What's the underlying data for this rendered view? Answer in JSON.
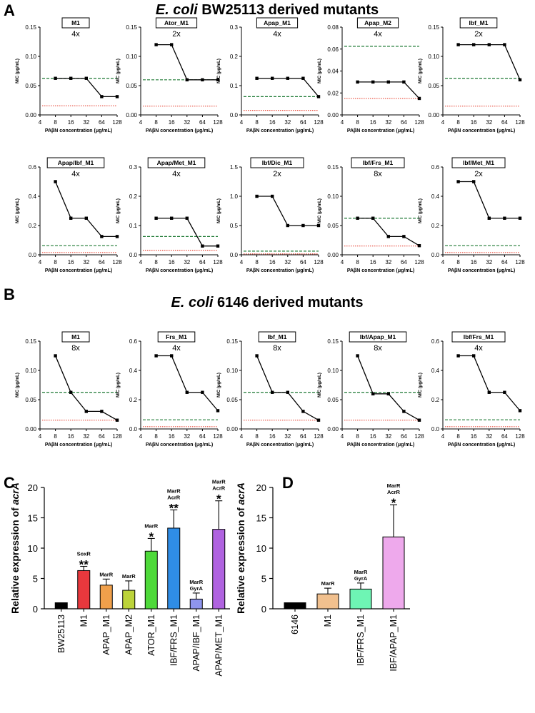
{
  "panel_labels": [
    "A",
    "B",
    "C",
    "D"
  ],
  "section_titles": {
    "A": {
      "italic": "E. coli",
      "rest": " BW25113 derived mutants"
    },
    "B": {
      "italic": "E. coli",
      "rest": " 6146 derived mutants"
    }
  },
  "colors": {
    "line": "#000000",
    "green_dashed": "#1e7a35",
    "red_dotted": "#e74c3c"
  },
  "chart_data": [
    {
      "type": "line",
      "panel": "A",
      "title": "M1",
      "fold": "4x",
      "xlabel": "PAβN concentration (μg/mL)",
      "ylabel": "MIC (μg/mL)",
      "x": [
        8,
        16,
        32,
        64,
        128
      ],
      "y": [
        0.0625,
        0.0625,
        0.0625,
        0.03125,
        0.03125
      ],
      "ylim": [
        0,
        0.15
      ],
      "yticks": [
        "0.00",
        "0.05",
        "0.10",
        "0.15"
      ],
      "green": 0.0625,
      "red": 0.0156
    },
    {
      "type": "line",
      "panel": "A",
      "title": "Ator_M1",
      "fold": "2x",
      "xlabel": "PAβN concentration (μg/mL)",
      "ylabel": "MIC (μg/mL)",
      "x": [
        8,
        16,
        32,
        64,
        128
      ],
      "y": [
        0.12,
        0.12,
        0.06,
        0.06,
        0.06
      ],
      "ylim": [
        0,
        0.15
      ],
      "yticks": [
        "0.00",
        "0.05",
        "0.10",
        "0.15"
      ],
      "green": 0.06,
      "red": 0.015
    },
    {
      "type": "line",
      "panel": "A",
      "title": "Apap_M1",
      "fold": "4x",
      "xlabel": "PAβN concentration (μg/mL)",
      "ylabel": "MIC (μg/mL)",
      "x": [
        8,
        16,
        32,
        64,
        128
      ],
      "y": [
        0.125,
        0.125,
        0.125,
        0.125,
        0.0625
      ],
      "ylim": [
        0,
        0.3
      ],
      "yticks": [
        "0.0",
        "0.1",
        "0.2",
        "0.3"
      ],
      "green": 0.0625,
      "red": 0.0156
    },
    {
      "type": "line",
      "panel": "A",
      "title": "Apap_M2",
      "fold": "4x",
      "xlabel": "PAβN concentration (μg/mL)",
      "ylabel": "MIC (μg/mL)",
      "x": [
        8,
        16,
        32,
        64,
        128
      ],
      "y": [
        0.03,
        0.03,
        0.03,
        0.03,
        0.015
      ],
      "ylim": [
        0,
        0.08
      ],
      "yticks": [
        "0.00",
        "0.02",
        "0.04",
        "0.06",
        "0.08"
      ],
      "green": 0.0625,
      "red": 0.015
    },
    {
      "type": "line",
      "panel": "A",
      "title": "Ibf_M1",
      "fold": "2x",
      "xlabel": "PAβN concentration (μg/mL)",
      "ylabel": "MIC (μg/mL)",
      "x": [
        8,
        16,
        32,
        64,
        128
      ],
      "y": [
        0.12,
        0.12,
        0.12,
        0.12,
        0.06
      ],
      "ylim": [
        0,
        0.15
      ],
      "yticks": [
        "0.00",
        "0.05",
        "0.10",
        "0.15"
      ],
      "green": 0.0625,
      "red": 0.015
    },
    {
      "type": "line",
      "panel": "A",
      "title": "Apap/Ibf_M1",
      "fold": "4x",
      "xlabel": "PAβN concentration (μg/mL)",
      "ylabel": "MIC (μg/mL)",
      "x": [
        8,
        16,
        32,
        64,
        128
      ],
      "y": [
        0.5,
        0.25,
        0.25,
        0.125,
        0.125
      ],
      "ylim": [
        0,
        0.6
      ],
      "yticks": [
        "0.0",
        "0.2",
        "0.4",
        "0.6"
      ],
      "green": 0.0625,
      "red": 0.0156
    },
    {
      "type": "line",
      "panel": "A",
      "title": "Apap/Met_M1",
      "fold": "4x",
      "xlabel": "PAβN concentration (μg/mL)",
      "ylabel": "MIC (μg/mL)",
      "x": [
        8,
        16,
        32,
        64,
        128
      ],
      "y": [
        0.125,
        0.125,
        0.125,
        0.03,
        0.03
      ],
      "ylim": [
        0,
        0.3
      ],
      "yticks": [
        "0.0",
        "0.1",
        "0.2",
        "0.3"
      ],
      "green": 0.0625,
      "red": 0.0156
    },
    {
      "type": "line",
      "panel": "A",
      "title": "Ibf/Dic_M1",
      "fold": "2x",
      "xlabel": "PAβN concentration (μg/mL)",
      "ylabel": "MIC (μg/mL)",
      "x": [
        8,
        16,
        32,
        64,
        128
      ],
      "y": [
        1.0,
        1.0,
        0.5,
        0.5,
        0.5
      ],
      "ylim": [
        0,
        1.5
      ],
      "yticks": [
        "0.0",
        "0.5",
        "1.0",
        "1.5"
      ],
      "green": 0.0625,
      "red": 0.0156
    },
    {
      "type": "line",
      "panel": "A",
      "title": "Ibf/Frs_M1",
      "fold": "8x",
      "xlabel": "PAβN concentration (μg/mL)",
      "ylabel": "MIC (μg/mL)",
      "x": [
        8,
        16,
        32,
        64,
        128
      ],
      "y": [
        0.0625,
        0.0625,
        0.03125,
        0.03125,
        0.015625
      ],
      "ylim": [
        0,
        0.15
      ],
      "yticks": [
        "0.00",
        "0.05",
        "0.10",
        "0.15"
      ],
      "green": 0.0625,
      "red": 0.015
    },
    {
      "type": "line",
      "panel": "A",
      "title": "Ibf/Met_M1",
      "fold": "2x",
      "xlabel": "PAβN concentration (μg/mL)",
      "ylabel": "MIC (μg/mL)",
      "x": [
        8,
        16,
        32,
        64,
        128
      ],
      "y": [
        0.5,
        0.5,
        0.25,
        0.25,
        0.25
      ],
      "ylim": [
        0,
        0.6
      ],
      "yticks": [
        "0.0",
        "0.2",
        "0.4",
        "0.6"
      ],
      "green": 0.0625,
      "red": 0.0156
    },
    {
      "type": "line",
      "panel": "B",
      "title": "M1",
      "fold": "8x",
      "xlabel": "PAβN concentration (μg/mL)",
      "ylabel": "MIC (μg/mL)",
      "x": [
        8,
        16,
        32,
        64,
        128
      ],
      "y": [
        0.125,
        0.0625,
        0.03,
        0.03,
        0.015
      ],
      "ylim": [
        0,
        0.15
      ],
      "yticks": [
        "0.00",
        "0.05",
        "0.10",
        "0.15"
      ],
      "green": 0.0625,
      "red": 0.015
    },
    {
      "type": "line",
      "panel": "B",
      "title": "Frs_M1",
      "fold": "4x",
      "xlabel": "PAβN concentration (μg/mL)",
      "ylabel": "MIC (μg/mL)",
      "x": [
        8,
        16,
        32,
        64,
        128
      ],
      "y": [
        0.5,
        0.5,
        0.25,
        0.25,
        0.125
      ],
      "ylim": [
        0,
        0.6
      ],
      "yticks": [
        "0.0",
        "0.2",
        "0.4",
        "0.6"
      ],
      "green": 0.0625,
      "red": 0.0156
    },
    {
      "type": "line",
      "panel": "B",
      "title": "Ibf_M1",
      "fold": "8x",
      "xlabel": "PAβN concentration (μg/mL)",
      "ylabel": "MIC (μg/mL)",
      "x": [
        8,
        16,
        32,
        64,
        128
      ],
      "y": [
        0.125,
        0.0625,
        0.0625,
        0.03,
        0.015
      ],
      "ylim": [
        0,
        0.15
      ],
      "yticks": [
        "0.00",
        "0.05",
        "0.10",
        "0.15"
      ],
      "green": 0.0625,
      "red": 0.015
    },
    {
      "type": "line",
      "panel": "B",
      "title": "Ibf/Apap_M1",
      "fold": "8x",
      "xlabel": "PAβN concentration (μg/mL)",
      "ylabel": "MIC (μg/mL)",
      "x": [
        8,
        16,
        32,
        64,
        128
      ],
      "y": [
        0.125,
        0.06,
        0.06,
        0.03,
        0.015
      ],
      "ylim": [
        0,
        0.15
      ],
      "yticks": [
        "0.00",
        "0.05",
        "0.10",
        "0.15"
      ],
      "green": 0.0625,
      "red": 0.015
    },
    {
      "type": "line",
      "panel": "B",
      "title": "Ibf/Frs_M1",
      "fold": "4x",
      "xlabel": "PAβN concentration (μg/mL)",
      "ylabel": "MIC (μg/mL)",
      "x": [
        8,
        16,
        32,
        64,
        128
      ],
      "y": [
        0.5,
        0.5,
        0.25,
        0.25,
        0.125
      ],
      "ylim": [
        0,
        0.6
      ],
      "yticks": [
        "0.0",
        "0.2",
        "0.4",
        "0.6"
      ],
      "green": 0.0625,
      "red": 0.0156
    },
    {
      "type": "bar",
      "panel": "C",
      "ylabel_prefix": "Relative expression of ",
      "ylabel_italic": "acrA",
      "ylim": [
        0,
        20
      ],
      "yticks": [
        "0",
        "5",
        "10",
        "15",
        "20"
      ],
      "categories": [
        "BW25113",
        "M1",
        "APAP_M1",
        "APAP_M2",
        "ATOR_M1",
        "IBF/FRS_M1",
        "APAP/IBF_M1",
        "APAP/MET_M1"
      ],
      "values": [
        1.0,
        6.3,
        3.9,
        3.05,
        9.5,
        13.3,
        1.6,
        13.1
      ],
      "errors": [
        0,
        0.7,
        1.0,
        1.55,
        2.1,
        3.0,
        1.0,
        4.7
      ],
      "colors": [
        "#000000",
        "#e8383d",
        "#f0a04b",
        "#bcd33a",
        "#4ed93a",
        "#2f8de6",
        "#8f95ee",
        "#b063e0"
      ],
      "annotations": [
        [],
        [
          "SoxR"
        ],
        [
          "MarR"
        ],
        [
          "MarR"
        ],
        [
          "MarR"
        ],
        [
          "MarR",
          "AcrR"
        ],
        [
          "MarR",
          "GyrA"
        ],
        [
          "MarR",
          "AcrR"
        ]
      ],
      "stars": [
        "",
        "**",
        "",
        "",
        "*",
        "**",
        "",
        "*"
      ]
    },
    {
      "type": "bar",
      "panel": "D",
      "ylabel_prefix": "Relative expression of ",
      "ylabel_italic": "acrA",
      "ylim": [
        0,
        20
      ],
      "yticks": [
        "0",
        "5",
        "10",
        "15",
        "20"
      ],
      "categories": [
        "6146",
        "M1",
        "IBF/FRS_M1",
        "IBF/APAP_M1"
      ],
      "values": [
        1.0,
        2.45,
        3.25,
        11.85
      ],
      "errors": [
        0,
        0.95,
        1.0,
        5.3
      ],
      "colors": [
        "#000000",
        "#f1c08e",
        "#6ef5b4",
        "#eea9ec"
      ],
      "annotations": [
        [],
        [
          "MarR"
        ],
        [
          "MarR",
          "GyrA"
        ],
        [
          "MarR",
          "AcrR"
        ]
      ],
      "stars": [
        "",
        "",
        "",
        "*"
      ]
    }
  ]
}
